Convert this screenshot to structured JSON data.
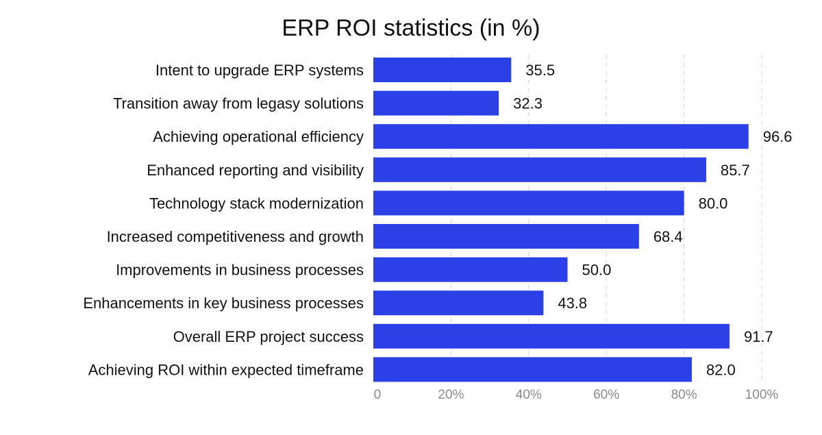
{
  "chart_data": {
    "type": "bar",
    "orientation": "horizontal",
    "title": "ERP ROI statistics (in %)",
    "xlabel": "",
    "ylabel": "",
    "categories": [
      "Intent to upgrade ERP systems",
      "Transition away from legasy solutions",
      "Achieving operational efficiency",
      "Enhanced reporting and visibility",
      "Technology stack modernization",
      "Increased competitiveness and growth",
      "Improvements in business processes",
      "Enhancements in key business processes",
      "Overall ERP project success",
      "Achieving ROI within expected timeframe"
    ],
    "values": [
      35.5,
      32.3,
      96.6,
      85.7,
      80.0,
      68.4,
      50.0,
      43.8,
      91.7,
      82.0
    ],
    "value_labels": [
      "35.5",
      "32.3",
      "96.6",
      "85.7",
      "80.0",
      "68.4",
      "50.0",
      "43.8",
      "91.7",
      "82.0"
    ],
    "xlim": [
      0,
      100
    ],
    "x_ticks": [
      0,
      20,
      40,
      60,
      80,
      100
    ],
    "x_tick_labels": [
      "0",
      "20%",
      "40%",
      "60%",
      "80%",
      "100%"
    ],
    "grid": "vertical-dashed",
    "legend": "none",
    "colors": {
      "bar": "#2B40E6",
      "text": "#111111",
      "tick": "#8a8a8a",
      "grid": "#d8d8d8"
    }
  }
}
